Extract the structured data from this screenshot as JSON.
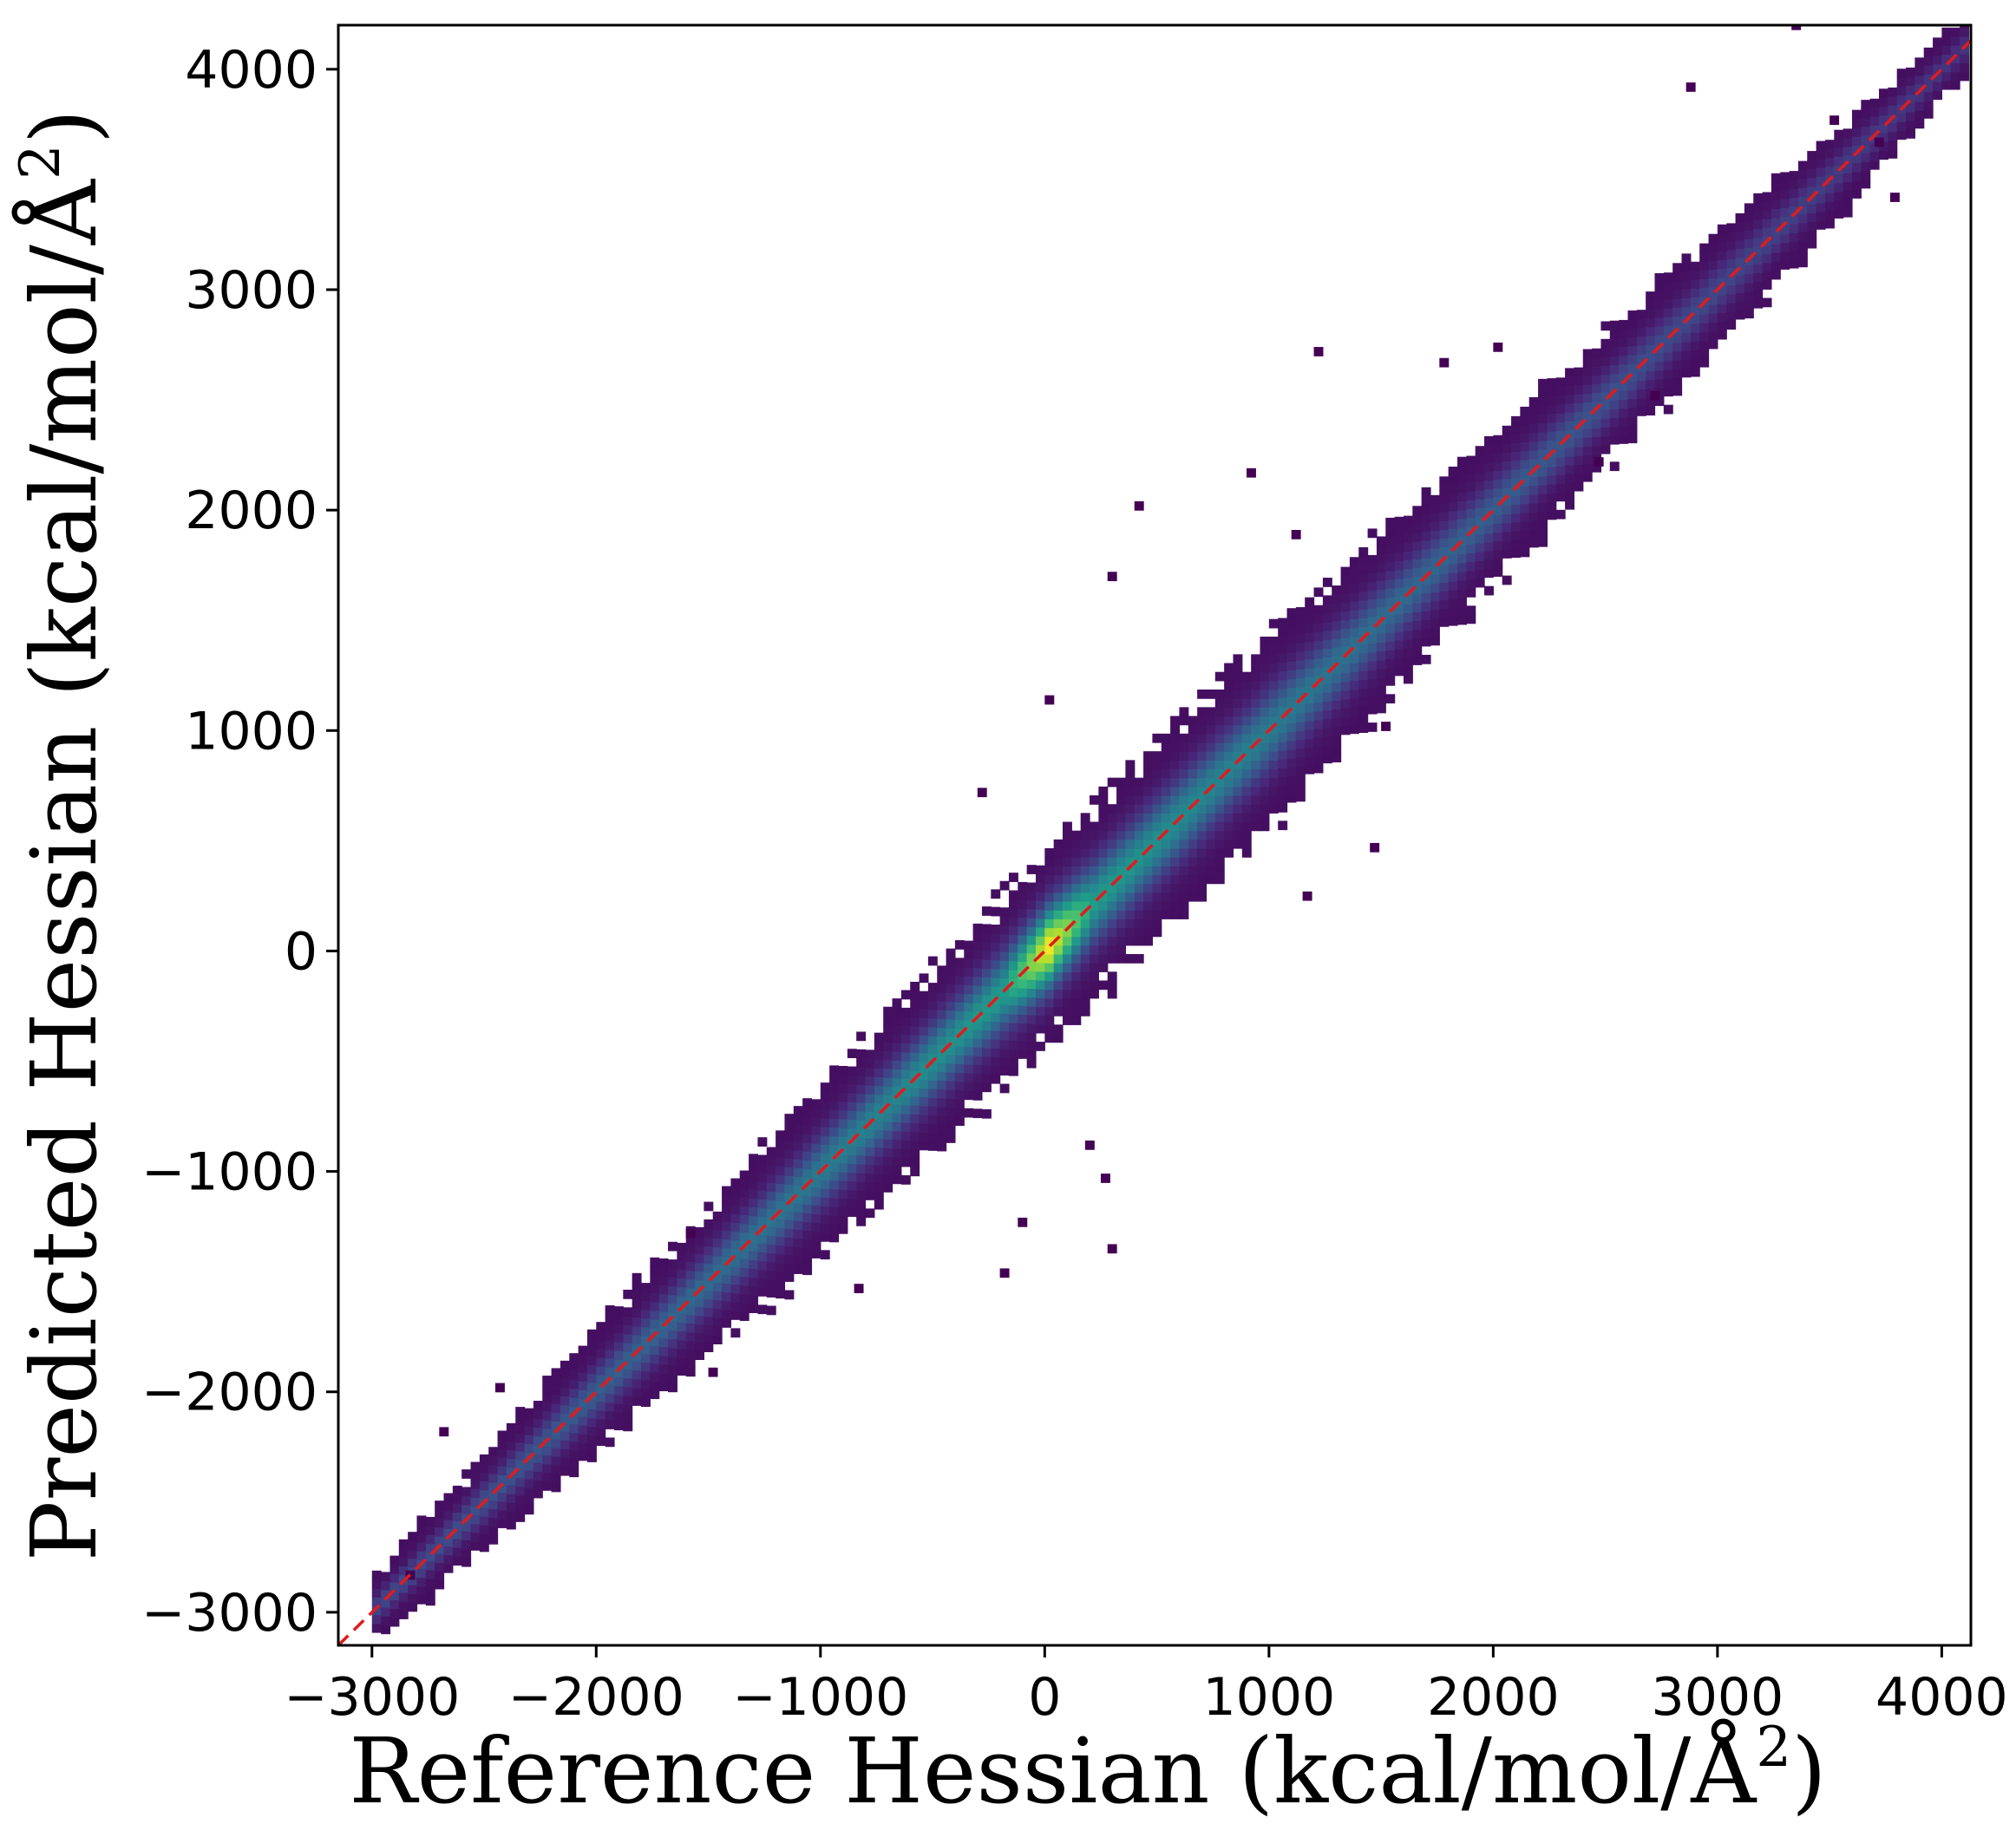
{
  "chart_data": {
    "type": "heatmap",
    "subtype": "2d-histogram density scatter",
    "colormap": "viridis",
    "xlabel": {
      "prefix": "Reference Hessian (kcal/mol/Å",
      "sup": "2",
      "suffix": ")"
    },
    "ylabel": {
      "prefix": "Predicted Hessian (kcal/mol/Å",
      "sup": "2",
      "suffix": ")"
    },
    "xlim": [
      -3150,
      4130
    ],
    "ylim": [
      -3150,
      4200
    ],
    "xticks": [
      -3000,
      -2000,
      -1000,
      0,
      1000,
      2000,
      3000,
      4000
    ],
    "yticks": [
      -3000,
      -2000,
      -1000,
      0,
      1000,
      2000,
      3000,
      4000
    ],
    "xtick_labels": [
      "−3000",
      "−2000",
      "−1000",
      "0",
      "1000",
      "2000",
      "3000",
      "4000"
    ],
    "ytick_labels": [
      "−3000",
      "−2000",
      "−1000",
      "0",
      "1000",
      "2000",
      "3000",
      "4000"
    ],
    "grid": false,
    "legend": "none",
    "reference_line": {
      "style": "dashed",
      "color": "#e31a1c",
      "points": [
        [
          -3150,
          -3150
        ],
        [
          4130,
          4130
        ]
      ]
    },
    "density_band": {
      "center_line": "y = x",
      "x_range": [
        -3000,
        4100
      ],
      "half_width_at": [
        {
          "x": -3000,
          "half_width": 90
        },
        {
          "x": -2000,
          "half_width": 170
        },
        {
          "x": -1000,
          "half_width": 230
        },
        {
          "x": 0,
          "half_width": 260
        },
        {
          "x": 1000,
          "half_width": 260
        },
        {
          "x": 2000,
          "half_width": 200
        },
        {
          "x": 3000,
          "half_width": 160
        },
        {
          "x": 4000,
          "half_width": 90
        }
      ],
      "peak_density_at": [
        0,
        0
      ]
    },
    "outlier_points": [
      [
        400,
        2000
      ],
      [
        280,
        1680
      ],
      [
        0,
        1120
      ],
      [
        1500,
        1000
      ],
      [
        1450,
        450
      ],
      [
        1150,
        230
      ],
      [
        -300,
        700
      ],
      [
        -200,
        -1480
      ],
      [
        -120,
        -1250
      ],
      [
        280,
        -1370
      ],
      [
        250,
        -1050
      ],
      [
        180,
        -900
      ],
      [
        -850,
        -1550
      ],
      [
        1200,
        2700
      ],
      [
        1760,
        2650
      ],
      [
        2000,
        2720
      ],
      [
        2450,
        2200
      ],
      [
        2860,
        3900
      ],
      [
        3330,
        4180
      ],
      [
        3500,
        3750
      ],
      [
        3700,
        3650
      ],
      [
        3770,
        3400
      ],
      [
        -2850,
        -2850
      ],
      [
        -2700,
        -2200
      ],
      [
        -2450,
        -2000
      ],
      [
        -1500,
        -1930
      ],
      [
        -1600,
        -1300
      ],
      [
        900,
        2150
      ],
      [
        1100,
        1870
      ],
      [
        2700,
        2500
      ]
    ]
  }
}
